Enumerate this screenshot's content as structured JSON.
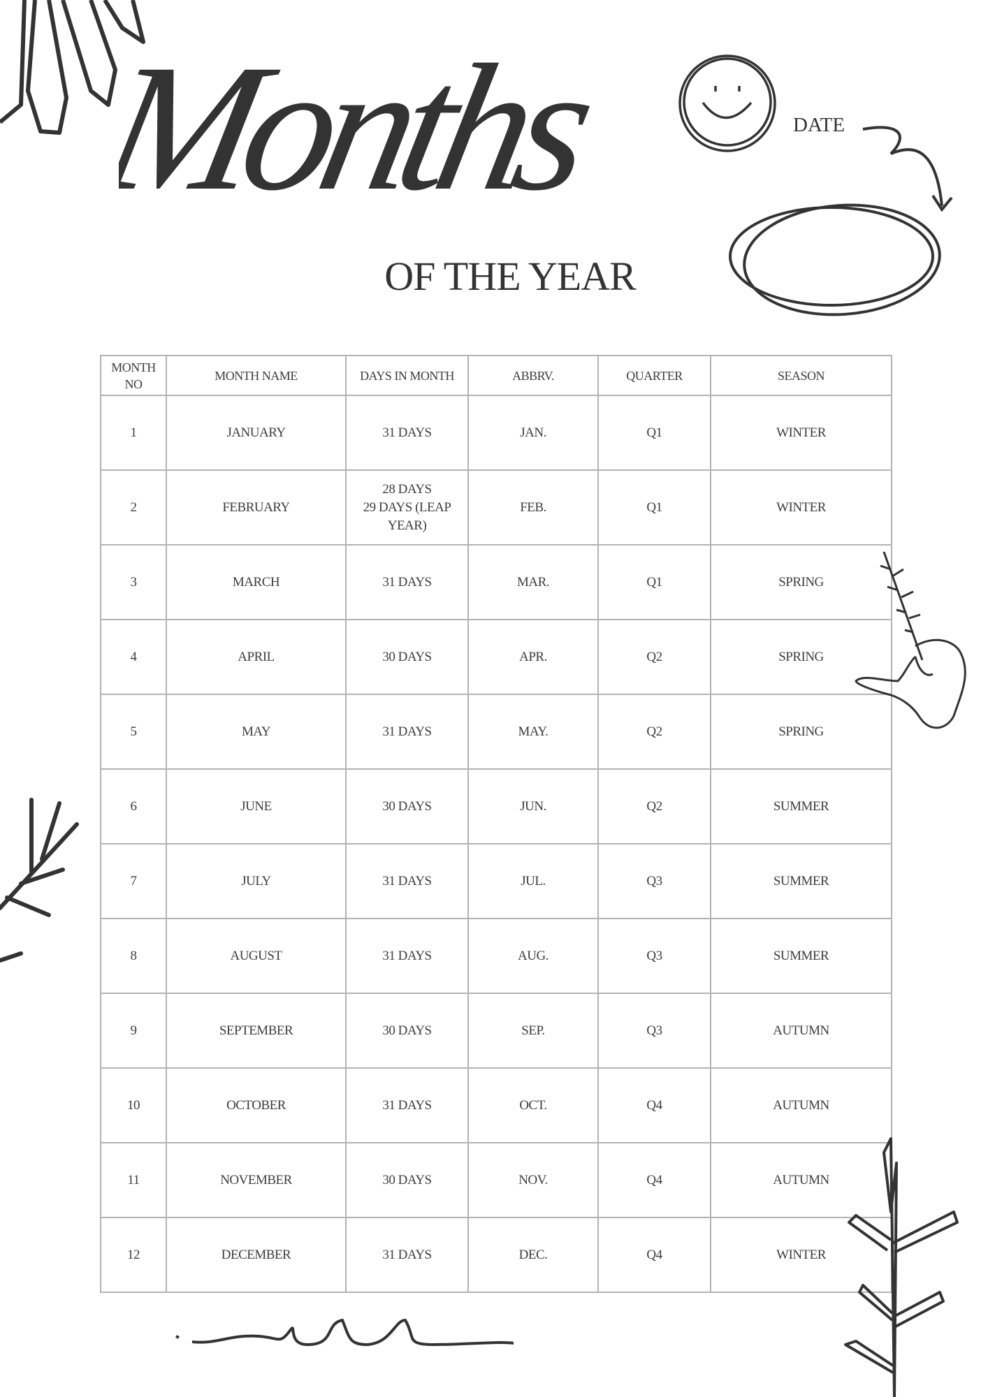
{
  "header": {
    "title": "Months",
    "subtitle": "OF THE YEAR",
    "date_label": "DATE"
  },
  "table": {
    "columns": [
      "MONTH NO",
      "MONTH NAME",
      "DAYS IN MONTH",
      "ABBRV.",
      "QUARTER",
      "SEASON"
    ],
    "rows": [
      {
        "no": "1",
        "name": "JANUARY",
        "days": "31 DAYS",
        "abbr": "JAN.",
        "quarter": "Q1",
        "season": "WINTER"
      },
      {
        "no": "2",
        "name": "FEBRUARY",
        "days": "28 DAYS\n29 DAYS (LEAP YEAR)",
        "abbr": "FEB.",
        "quarter": "Q1",
        "season": "WINTER"
      },
      {
        "no": "3",
        "name": "MARCH",
        "days": "31 DAYS",
        "abbr": "MAR.",
        "quarter": "Q1",
        "season": "SPRING"
      },
      {
        "no": "4",
        "name": "APRIL",
        "days": "30 DAYS",
        "abbr": "APR.",
        "quarter": "Q2",
        "season": "SPRING"
      },
      {
        "no": "5",
        "name": "MAY",
        "days": "31 DAYS",
        "abbr": "MAY.",
        "quarter": "Q2",
        "season": "SPRING"
      },
      {
        "no": "6",
        "name": "JUNE",
        "days": "30 DAYS",
        "abbr": "JUN.",
        "quarter": "Q2",
        "season": "SUMMER"
      },
      {
        "no": "7",
        "name": "JULY",
        "days": "31 DAYS",
        "abbr": "JUL.",
        "quarter": "Q3",
        "season": "SUMMER"
      },
      {
        "no": "8",
        "name": "AUGUST",
        "days": "31 DAYS",
        "abbr": "AUG.",
        "quarter": "Q3",
        "season": "SUMMER"
      },
      {
        "no": "9",
        "name": "SEPTEMBER",
        "days": "30 DAYS",
        "abbr": "SEP.",
        "quarter": "Q3",
        "season": "AUTUMN"
      },
      {
        "no": "10",
        "name": "OCTOBER",
        "days": "31 DAYS",
        "abbr": "OCT.",
        "quarter": "Q4",
        "season": "AUTUMN"
      },
      {
        "no": "11",
        "name": "NOVEMBER",
        "days": "30 DAYS",
        "abbr": "NOV.",
        "quarter": "Q4",
        "season": "AUTUMN"
      },
      {
        "no": "12",
        "name": "DECEMBER",
        "days": "31 DAYS",
        "abbr": "DEC.",
        "quarter": "Q4",
        "season": "WINTER"
      }
    ]
  },
  "colors": {
    "ink": "#333333",
    "grid": "#b3b3b3",
    "background": "#ffffff"
  }
}
